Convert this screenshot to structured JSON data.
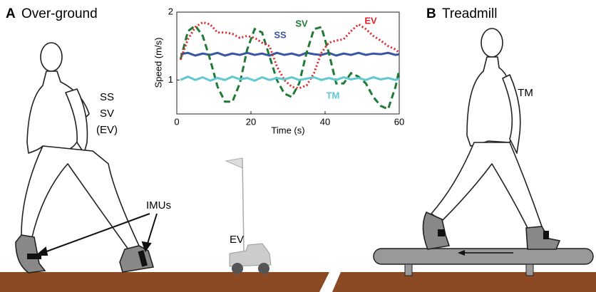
{
  "panels": {
    "a_letter": "A",
    "a_title": "Over-ground",
    "b_letter": "B",
    "b_title": "Treadmill",
    "a_conditions": [
      "SS",
      "SV",
      "(EV)"
    ],
    "imus": "IMUs",
    "ev_car": "EV",
    "b_condition": "TM"
  },
  "chart_data": {
    "type": "line",
    "xlabel": "Time (s)",
    "ylabel": "Speed (m/s)",
    "x": [
      1,
      3,
      5,
      7,
      9,
      11,
      13,
      15,
      17,
      19,
      21,
      23,
      25,
      27,
      29,
      31,
      33,
      35,
      37,
      39,
      41,
      43,
      45,
      47,
      49,
      51,
      53,
      55,
      57,
      59,
      60
    ],
    "xlim": [
      0,
      60
    ],
    "xticks": [
      0,
      20,
      40,
      60
    ],
    "ylim": [
      0.5,
      2
    ],
    "yticks": [
      1,
      2
    ],
    "series": [
      {
        "name": "SS",
        "color": "#3a55a4",
        "style": "solid",
        "values": [
          1.38,
          1.4,
          1.36,
          1.39,
          1.37,
          1.4,
          1.36,
          1.39,
          1.37,
          1.4,
          1.37,
          1.39,
          1.36,
          1.4,
          1.37,
          1.39,
          1.36,
          1.4,
          1.38,
          1.37,
          1.4,
          1.36,
          1.39,
          1.37,
          1.4,
          1.37,
          1.39,
          1.38,
          1.4,
          1.37,
          1.38
        ]
      },
      {
        "name": "SV",
        "color": "#1e7a34",
        "style": "dashed",
        "values": [
          1.3,
          1.72,
          1.8,
          1.65,
          1.3,
          0.9,
          0.68,
          0.68,
          0.95,
          1.45,
          1.75,
          1.7,
          1.35,
          1.0,
          0.8,
          0.75,
          0.95,
          1.4,
          1.75,
          1.78,
          1.4,
          0.95,
          0.95,
          1.1,
          1.05,
          0.95,
          0.75,
          0.62,
          0.57,
          0.9,
          1.15
        ]
      },
      {
        "name": "EV",
        "color": "#e0262b",
        "style": "dotted",
        "values": [
          1.3,
          1.6,
          1.78,
          1.85,
          1.82,
          1.7,
          1.7,
          1.68,
          1.62,
          1.65,
          1.62,
          1.55,
          1.5,
          1.2,
          1.0,
          0.9,
          0.88,
          0.92,
          1.1,
          1.4,
          1.55,
          1.58,
          1.6,
          1.72,
          1.82,
          1.75,
          1.65,
          1.58,
          1.5,
          1.45,
          1.4
        ]
      },
      {
        "name": "TM",
        "color": "#5fc8d2",
        "style": "solid",
        "values": [
          1.0,
          1.05,
          1.0,
          1.04,
          0.99,
          1.03,
          1.0,
          1.05,
          1.01,
          1.03,
          0.99,
          1.04,
          1.0,
          1.03,
          1.01,
          1.04,
          1.0,
          1.02,
          1.04,
          1.0,
          1.03,
          1.0,
          1.04,
          1.01,
          1.03,
          1.0,
          1.04,
          1.01,
          1.03,
          1.0,
          1.02
        ]
      }
    ]
  }
}
